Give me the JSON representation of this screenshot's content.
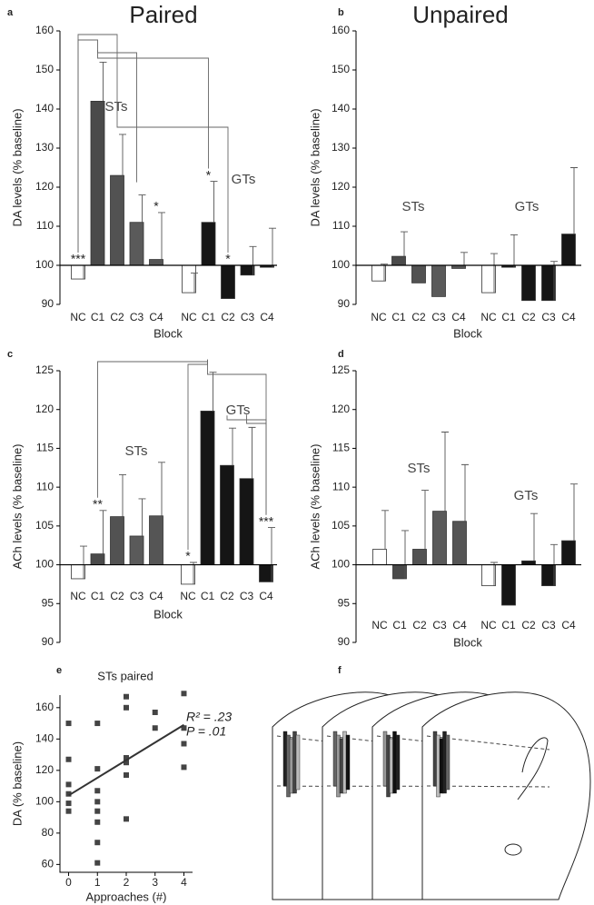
{
  "column_titles": [
    "Paired",
    "Unpaired"
  ],
  "chart_data": [
    {
      "type": "bar",
      "panel_label": "a",
      "ylabel": "DA levels (% baseline)",
      "xlabel": "Block",
      "categories": [
        "NC",
        "C1",
        "C2",
        "C3",
        "C4"
      ],
      "ylim": [
        90,
        160
      ],
      "yticks": [
        90,
        100,
        110,
        120,
        130,
        140,
        150,
        160
      ],
      "baseline": 100,
      "series": [
        {
          "name": "STs",
          "colors": [
            "#ffffff",
            "#4a4a4a",
            "#525252",
            "#5a5a5a",
            "#555555"
          ],
          "values": [
            96.5,
            142,
            123,
            111,
            101.5
          ],
          "errors": [
            3.5,
            10,
            10.5,
            7,
            12
          ],
          "significance": [
            "***",
            null,
            null,
            null,
            "*"
          ]
        },
        {
          "name": "GTs",
          "colors": [
            "#ffffff",
            "#151515",
            "#151515",
            "#151515",
            "#151515"
          ],
          "values": [
            93,
            111,
            91.5,
            97.5,
            99.5
          ],
          "errors": [
            5,
            10.5,
            null,
            7.3,
            10
          ],
          "significance": [
            null,
            "*",
            "*",
            null,
            null
          ]
        }
      ]
    },
    {
      "type": "bar",
      "panel_label": "b",
      "ylabel": "DA levels (% baseline)",
      "xlabel": "Block",
      "categories": [
        "NC",
        "C1",
        "C2",
        "C3",
        "C4"
      ],
      "ylim": [
        90,
        160
      ],
      "yticks": [
        90,
        100,
        110,
        120,
        130,
        140,
        150,
        160
      ],
      "baseline": 100,
      "series": [
        {
          "name": "STs",
          "colors": [
            "#ffffff",
            "#4a4a4a",
            "#525252",
            "#5a5a5a",
            "#555555"
          ],
          "values": [
            96,
            102.3,
            95.5,
            92,
            99.2
          ],
          "errors": [
            4.3,
            6.3,
            null,
            null,
            4.1
          ],
          "significance": [
            null,
            null,
            null,
            null,
            null
          ]
        },
        {
          "name": "GTs",
          "colors": [
            "#ffffff",
            "#151515",
            "#151515",
            "#151515",
            "#151515"
          ],
          "values": [
            93,
            99.5,
            91,
            91,
            108
          ],
          "errors": [
            10,
            8.3,
            null,
            10,
            17
          ],
          "significance": [
            null,
            null,
            null,
            null,
            null
          ]
        }
      ]
    },
    {
      "type": "bar",
      "panel_label": "c",
      "ylabel": "ACh levels (% baseline)",
      "xlabel": "Block",
      "categories": [
        "NC",
        "C1",
        "C2",
        "C3",
        "C4"
      ],
      "ylim": [
        90,
        125
      ],
      "yticks": [
        90,
        95,
        100,
        105,
        110,
        115,
        120,
        125
      ],
      "baseline": 100,
      "series": [
        {
          "name": "STs",
          "colors": [
            "#ffffff",
            "#4a4a4a",
            "#525252",
            "#5a5a5a",
            "#555555"
          ],
          "values": [
            98.2,
            101.4,
            106.2,
            103.7,
            106.3
          ],
          "errors": [
            4.2,
            5.6,
            5.4,
            4.8,
            6.9
          ],
          "significance": [
            null,
            "**",
            null,
            null,
            null
          ]
        },
        {
          "name": "GTs",
          "colors": [
            "#ffffff",
            "#151515",
            "#151515",
            "#151515",
            "#151515"
          ],
          "values": [
            97.5,
            119.8,
            112.8,
            111.1,
            97.8
          ],
          "errors": [
            2.8,
            5,
            4.8,
            6.6,
            7
          ],
          "significance": [
            "*",
            null,
            null,
            null,
            "***"
          ]
        }
      ]
    },
    {
      "type": "bar",
      "panel_label": "d",
      "ylabel": "ACh levels (% baseline)",
      "xlabel": "Block",
      "categories": [
        "NC",
        "C1",
        "C2",
        "C3",
        "C4"
      ],
      "ylim": [
        90,
        125
      ],
      "yticks": [
        90,
        95,
        100,
        105,
        110,
        115,
        120,
        125
      ],
      "baseline": 100,
      "series": [
        {
          "name": "STs",
          "colors": [
            "#ffffff",
            "#4a4a4a",
            "#525252",
            "#5a5a5a",
            "#555555"
          ],
          "values": [
            102,
            98.2,
            102,
            106.9,
            105.6
          ],
          "errors": [
            5,
            6.2,
            7.6,
            10.2,
            7.3
          ],
          "significance": [
            null,
            null,
            null,
            null,
            null
          ]
        },
        {
          "name": "GTs",
          "colors": [
            "#ffffff",
            "#151515",
            "#151515",
            "#151515",
            "#151515"
          ],
          "values": [
            97.3,
            94.8,
            100.5,
            97.3,
            103.1
          ],
          "errors": [
            3,
            null,
            6.1,
            5.3,
            7.3
          ],
          "significance": [
            null,
            null,
            null,
            null,
            null
          ]
        }
      ]
    },
    {
      "type": "scatter",
      "panel_label": "e",
      "title": "STs paired",
      "xlabel": "Approaches (#)",
      "ylabel": "DA (% baseline)",
      "xlim": [
        -0.3,
        4.3
      ],
      "xticks": [
        0,
        1,
        2,
        3,
        4
      ],
      "ylim": [
        55,
        168
      ],
      "yticks": [
        60,
        80,
        100,
        120,
        140,
        160
      ],
      "color": "#444444",
      "x": [
        0,
        0,
        0,
        0,
        0,
        0,
        1,
        1,
        1,
        1,
        1,
        1,
        1,
        1,
        2,
        2,
        2,
        2,
        2,
        2,
        3,
        3,
        4,
        4,
        4,
        4
      ],
      "values": [
        150,
        127,
        111,
        105,
        99,
        94,
        150,
        121,
        107,
        100,
        94,
        87,
        74,
        61,
        167,
        160,
        128,
        125,
        117,
        89,
        157,
        147,
        169,
        147,
        137,
        122
      ],
      "fit": {
        "x": [
          0,
          4
        ],
        "y": [
          104,
          149
        ]
      },
      "annotations": [
        "R² = .23",
        "P = .01"
      ]
    }
  ],
  "diagram": {
    "panel_label": "f"
  }
}
